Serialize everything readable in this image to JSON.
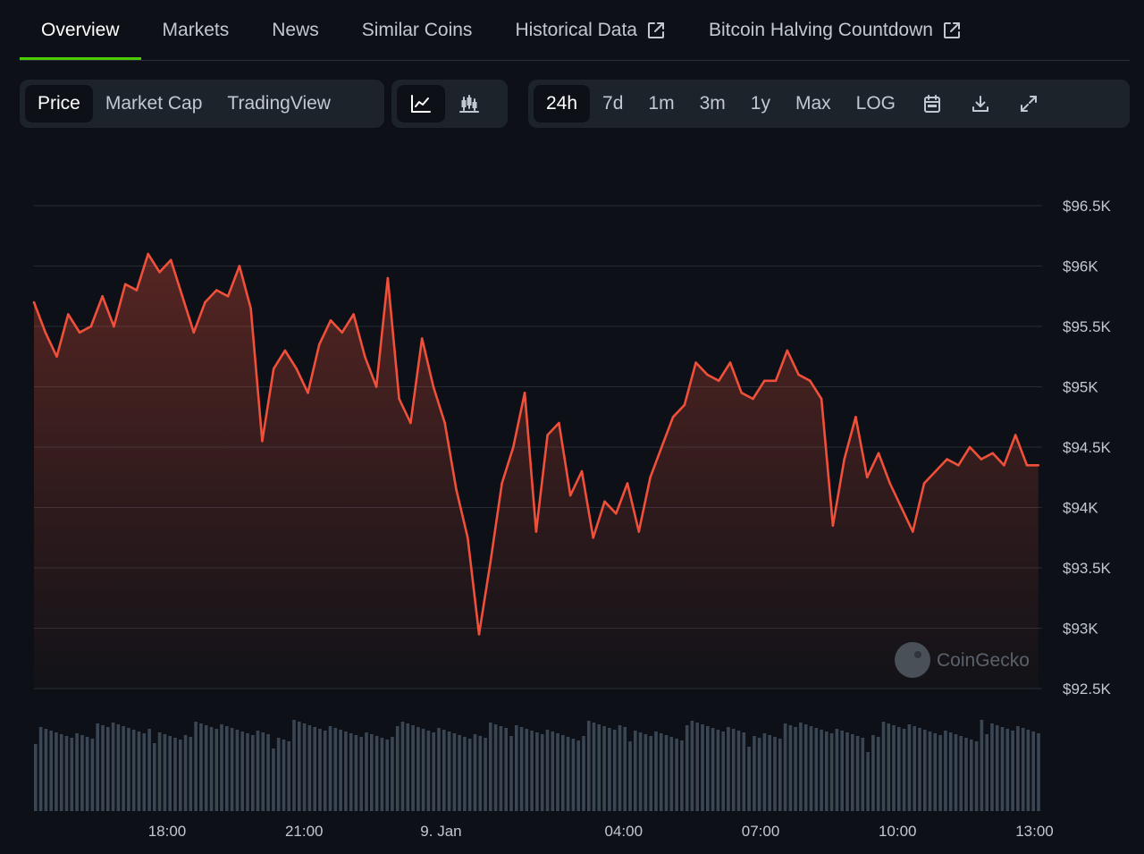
{
  "tabs": [
    {
      "label": "Overview",
      "active": true,
      "external": false
    },
    {
      "label": "Markets",
      "active": false,
      "external": false
    },
    {
      "label": "News",
      "active": false,
      "external": false
    },
    {
      "label": "Similar Coins",
      "active": false,
      "external": false
    },
    {
      "label": "Historical Data",
      "active": false,
      "external": true
    },
    {
      "label": "Bitcoin Halving Countdown",
      "active": false,
      "external": true
    }
  ],
  "chart_type_tabs": [
    {
      "label": "Price",
      "active": true
    },
    {
      "label": "Market Cap",
      "active": false
    },
    {
      "label": "TradingView",
      "active": false
    }
  ],
  "chart_style_icons": [
    "line-chart-icon",
    "candlestick-chart-icon"
  ],
  "range_tabs": [
    {
      "label": "24h",
      "active": true
    },
    {
      "label": "7d",
      "active": false
    },
    {
      "label": "1m",
      "active": false
    },
    {
      "label": "3m",
      "active": false
    },
    {
      "label": "1y",
      "active": false
    },
    {
      "label": "Max",
      "active": false
    },
    {
      "label": "LOG",
      "active": false
    }
  ],
  "tool_icons": [
    "calendar-icon",
    "download-icon",
    "expand-icon"
  ],
  "watermark": "CoinGecko",
  "colors": {
    "line": "#f0503a",
    "volume": "#3a4654",
    "grid": "#262c34",
    "active_tab_underline": "#4bcc00"
  },
  "chart_data": {
    "type": "line",
    "title": "",
    "xlabel": "",
    "ylabel": "",
    "ylim": [
      92500,
      96500
    ],
    "yticks": [
      96500,
      96000,
      95500,
      95000,
      94500,
      94000,
      93500,
      93000,
      92500
    ],
    "ytick_labels": [
      "$96.5K",
      "$96K",
      "$95.5K",
      "$95K",
      "$94.5K",
      "$94K",
      "$93.5K",
      "$93K",
      "$92.5K"
    ],
    "xlim": [
      "2025-01-08T15:05",
      "2025-01-09T13:10"
    ],
    "xticks": [
      "2025-01-08T18:00",
      "2025-01-08T21:00",
      "2025-01-09T00:00",
      "2025-01-09T04:00",
      "2025-01-09T07:00",
      "2025-01-09T10:00",
      "2025-01-09T13:00"
    ],
    "xtick_labels": [
      "18:00",
      "21:00",
      "9. Jan",
      "04:00",
      "07:00",
      "10:00",
      "13:00"
    ],
    "grid": true,
    "series": [
      {
        "values": [
          [
            "2025-01-08T15:05",
            95700
          ],
          [
            "2025-01-08T15:20",
            95450
          ],
          [
            "2025-01-08T15:35",
            95250
          ],
          [
            "2025-01-08T15:50",
            95600
          ],
          [
            "2025-01-08T16:05",
            95450
          ],
          [
            "2025-01-08T16:20",
            95500
          ],
          [
            "2025-01-08T16:35",
            95750
          ],
          [
            "2025-01-08T16:50",
            95500
          ],
          [
            "2025-01-08T17:05",
            95850
          ],
          [
            "2025-01-08T17:20",
            95800
          ],
          [
            "2025-01-08T17:35",
            96100
          ],
          [
            "2025-01-08T17:50",
            95950
          ],
          [
            "2025-01-08T18:05",
            96050
          ],
          [
            "2025-01-08T18:20",
            95750
          ],
          [
            "2025-01-08T18:35",
            95450
          ],
          [
            "2025-01-08T18:50",
            95700
          ],
          [
            "2025-01-08T19:05",
            95800
          ],
          [
            "2025-01-08T19:20",
            95750
          ],
          [
            "2025-01-08T19:35",
            96000
          ],
          [
            "2025-01-08T19:50",
            95650
          ],
          [
            "2025-01-08T20:05",
            94550
          ],
          [
            "2025-01-08T20:20",
            95150
          ],
          [
            "2025-01-08T20:35",
            95300
          ],
          [
            "2025-01-08T20:50",
            95150
          ],
          [
            "2025-01-08T21:05",
            94950
          ],
          [
            "2025-01-08T21:20",
            95350
          ],
          [
            "2025-01-08T21:35",
            95550
          ],
          [
            "2025-01-08T21:50",
            95450
          ],
          [
            "2025-01-08T22:05",
            95600
          ],
          [
            "2025-01-08T22:20",
            95250
          ],
          [
            "2025-01-08T22:35",
            95000
          ],
          [
            "2025-01-08T22:50",
            95900
          ],
          [
            "2025-01-08T23:05",
            94900
          ],
          [
            "2025-01-08T23:20",
            94700
          ],
          [
            "2025-01-08T23:35",
            95400
          ],
          [
            "2025-01-08T23:50",
            95000
          ],
          [
            "2025-01-09T00:05",
            94700
          ],
          [
            "2025-01-09T00:20",
            94150
          ],
          [
            "2025-01-09T00:35",
            93750
          ],
          [
            "2025-01-09T00:50",
            92950
          ],
          [
            "2025-01-09T01:05",
            93550
          ],
          [
            "2025-01-09T01:20",
            94200
          ],
          [
            "2025-01-09T01:35",
            94500
          ],
          [
            "2025-01-09T01:50",
            94950
          ],
          [
            "2025-01-09T02:05",
            93800
          ],
          [
            "2025-01-09T02:20",
            94600
          ],
          [
            "2025-01-09T02:35",
            94700
          ],
          [
            "2025-01-09T02:50",
            94100
          ],
          [
            "2025-01-09T03:05",
            94300
          ],
          [
            "2025-01-09T03:20",
            93750
          ],
          [
            "2025-01-09T03:35",
            94050
          ],
          [
            "2025-01-09T03:50",
            93950
          ],
          [
            "2025-01-09T04:05",
            94200
          ],
          [
            "2025-01-09T04:20",
            93800
          ],
          [
            "2025-01-09T04:35",
            94250
          ],
          [
            "2025-01-09T04:50",
            94500
          ],
          [
            "2025-01-09T05:05",
            94750
          ],
          [
            "2025-01-09T05:20",
            94850
          ],
          [
            "2025-01-09T05:35",
            95200
          ],
          [
            "2025-01-09T05:50",
            95100
          ],
          [
            "2025-01-09T06:05",
            95050
          ],
          [
            "2025-01-09T06:20",
            95200
          ],
          [
            "2025-01-09T06:35",
            94950
          ],
          [
            "2025-01-09T06:50",
            94900
          ],
          [
            "2025-01-09T07:05",
            95050
          ],
          [
            "2025-01-09T07:20",
            95050
          ],
          [
            "2025-01-09T07:35",
            95300
          ],
          [
            "2025-01-09T07:50",
            95100
          ],
          [
            "2025-01-09T08:05",
            95050
          ],
          [
            "2025-01-09T08:20",
            94900
          ],
          [
            "2025-01-09T08:35",
            93850
          ],
          [
            "2025-01-09T08:50",
            94400
          ],
          [
            "2025-01-09T09:05",
            94750
          ],
          [
            "2025-01-09T09:20",
            94250
          ],
          [
            "2025-01-09T09:35",
            94450
          ],
          [
            "2025-01-09T09:50",
            94200
          ],
          [
            "2025-01-09T10:05",
            94000
          ],
          [
            "2025-01-09T10:20",
            93800
          ],
          [
            "2025-01-09T10:35",
            94200
          ],
          [
            "2025-01-09T10:50",
            94300
          ],
          [
            "2025-01-09T11:05",
            94400
          ],
          [
            "2025-01-09T11:20",
            94350
          ],
          [
            "2025-01-09T11:35",
            94500
          ],
          [
            "2025-01-09T11:50",
            94400
          ],
          [
            "2025-01-09T12:05",
            94450
          ],
          [
            "2025-01-09T12:20",
            94350
          ],
          [
            "2025-01-09T12:35",
            94600
          ],
          [
            "2025-01-09T12:50",
            94350
          ],
          [
            "2025-01-09T13:05",
            94350
          ]
        ]
      }
    ]
  }
}
